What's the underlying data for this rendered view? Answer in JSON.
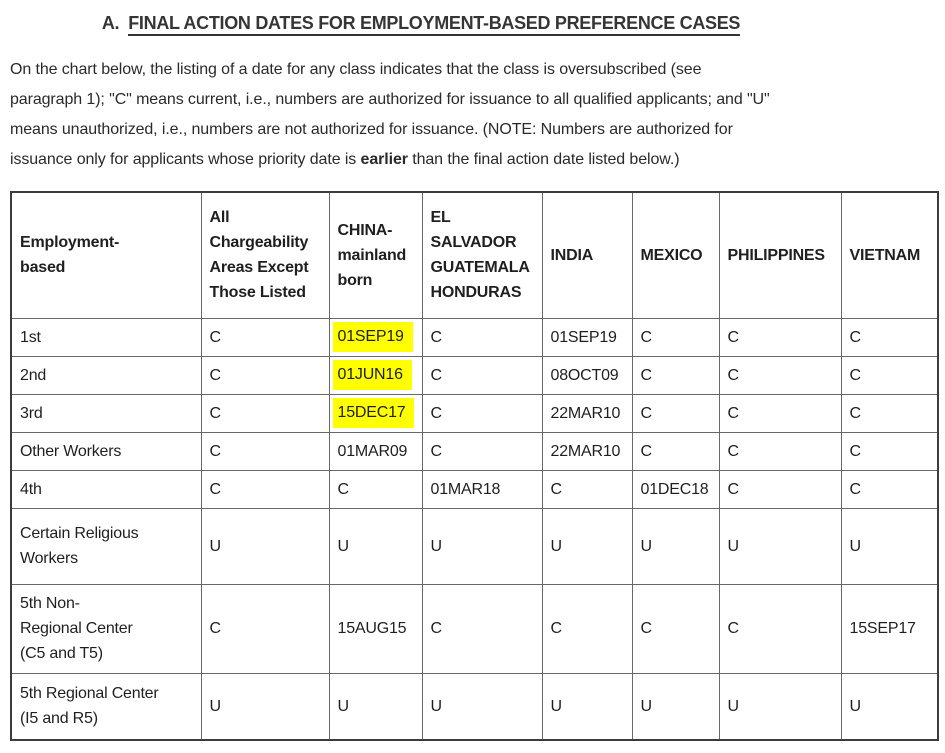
{
  "page": {
    "title": {
      "prefix": "A.",
      "text": "FINAL ACTION DATES FOR EMPLOYMENT-BASED PREFERENCE CASES"
    },
    "intro_lines": [
      [
        {
          "text": "On the chart below, the listing of a date for any class indicates that the class is oversubscribed (see",
          "bold": false
        }
      ],
      [
        {
          "text": "paragraph 1); \"C\" means current, i.e., numbers are authorized for issuance to all qualified applicants; and \"U\"",
          "bold": false
        }
      ],
      [
        {
          "text": "means unauthorized, i.e., numbers are not authorized for issuance. (NOTE: Numbers are authorized for",
          "bold": false
        }
      ],
      [
        {
          "text": "issuance only for applicants whose priority date is ",
          "bold": false
        },
        {
          "text": "earlier",
          "bold": true
        },
        {
          "text": " than the final action date listed below.)",
          "bold": false
        }
      ]
    ]
  },
  "table": {
    "highlight_color": "#ffff00",
    "columns": [
      {
        "label": "Employment-\nbased"
      },
      {
        "label": "All\nChargeability\nAreas Except\nThose Listed"
      },
      {
        "label": "CHINA-\nmainland\nborn"
      },
      {
        "label": "EL\nSALVADOR\nGUATEMALA\nHONDURAS"
      },
      {
        "label": "INDIA"
      },
      {
        "label": "MEXICO"
      },
      {
        "label": "PHILIPPINES"
      },
      {
        "label": "VIETNAM"
      }
    ],
    "rows": [
      {
        "label": "1st",
        "cells": [
          {
            "text": "C"
          },
          {
            "text": "01SEP19",
            "highlight": true
          },
          {
            "text": "C"
          },
          {
            "text": "01SEP19"
          },
          {
            "text": "C"
          },
          {
            "text": "C"
          },
          {
            "text": "C"
          }
        ]
      },
      {
        "label": "2nd",
        "cells": [
          {
            "text": "C"
          },
          {
            "text": "01JUN16",
            "highlight": true
          },
          {
            "text": "C"
          },
          {
            "text": "08OCT09"
          },
          {
            "text": "C"
          },
          {
            "text": "C"
          },
          {
            "text": "C"
          }
        ]
      },
      {
        "label": "3rd",
        "cells": [
          {
            "text": "C"
          },
          {
            "text": "15DEC17",
            "highlight": true
          },
          {
            "text": "C"
          },
          {
            "text": "22MAR10"
          },
          {
            "text": "C"
          },
          {
            "text": "C"
          },
          {
            "text": "C"
          }
        ]
      },
      {
        "label": "Other Workers",
        "cells": [
          {
            "text": "C"
          },
          {
            "text": "01MAR09"
          },
          {
            "text": "C"
          },
          {
            "text": "22MAR10"
          },
          {
            "text": "C"
          },
          {
            "text": "C"
          },
          {
            "text": "C"
          }
        ]
      },
      {
        "label": "4th",
        "cells": [
          {
            "text": "C"
          },
          {
            "text": "C"
          },
          {
            "text": "01MAR18"
          },
          {
            "text": "C"
          },
          {
            "text": "01DEC18"
          },
          {
            "text": "C"
          },
          {
            "text": "C"
          }
        ]
      },
      {
        "label": "Certain Religious\nWorkers",
        "cells": [
          {
            "text": "U"
          },
          {
            "text": "U"
          },
          {
            "text": "U"
          },
          {
            "text": "U"
          },
          {
            "text": "U"
          },
          {
            "text": "U"
          },
          {
            "text": "U"
          }
        ]
      },
      {
        "label": "5th Non-\nRegional Center\n(C5 and T5)",
        "cells": [
          {
            "text": "C"
          },
          {
            "text": "15AUG15"
          },
          {
            "text": "C"
          },
          {
            "text": "C"
          },
          {
            "text": "C"
          },
          {
            "text": "C"
          },
          {
            "text": "15SEP17"
          }
        ]
      },
      {
        "label": "5th Regional Center\n(I5 and R5)",
        "cells": [
          {
            "text": "U"
          },
          {
            "text": "U"
          },
          {
            "text": "U"
          },
          {
            "text": "U"
          },
          {
            "text": "U"
          },
          {
            "text": "U"
          },
          {
            "text": "U"
          }
        ]
      }
    ]
  }
}
